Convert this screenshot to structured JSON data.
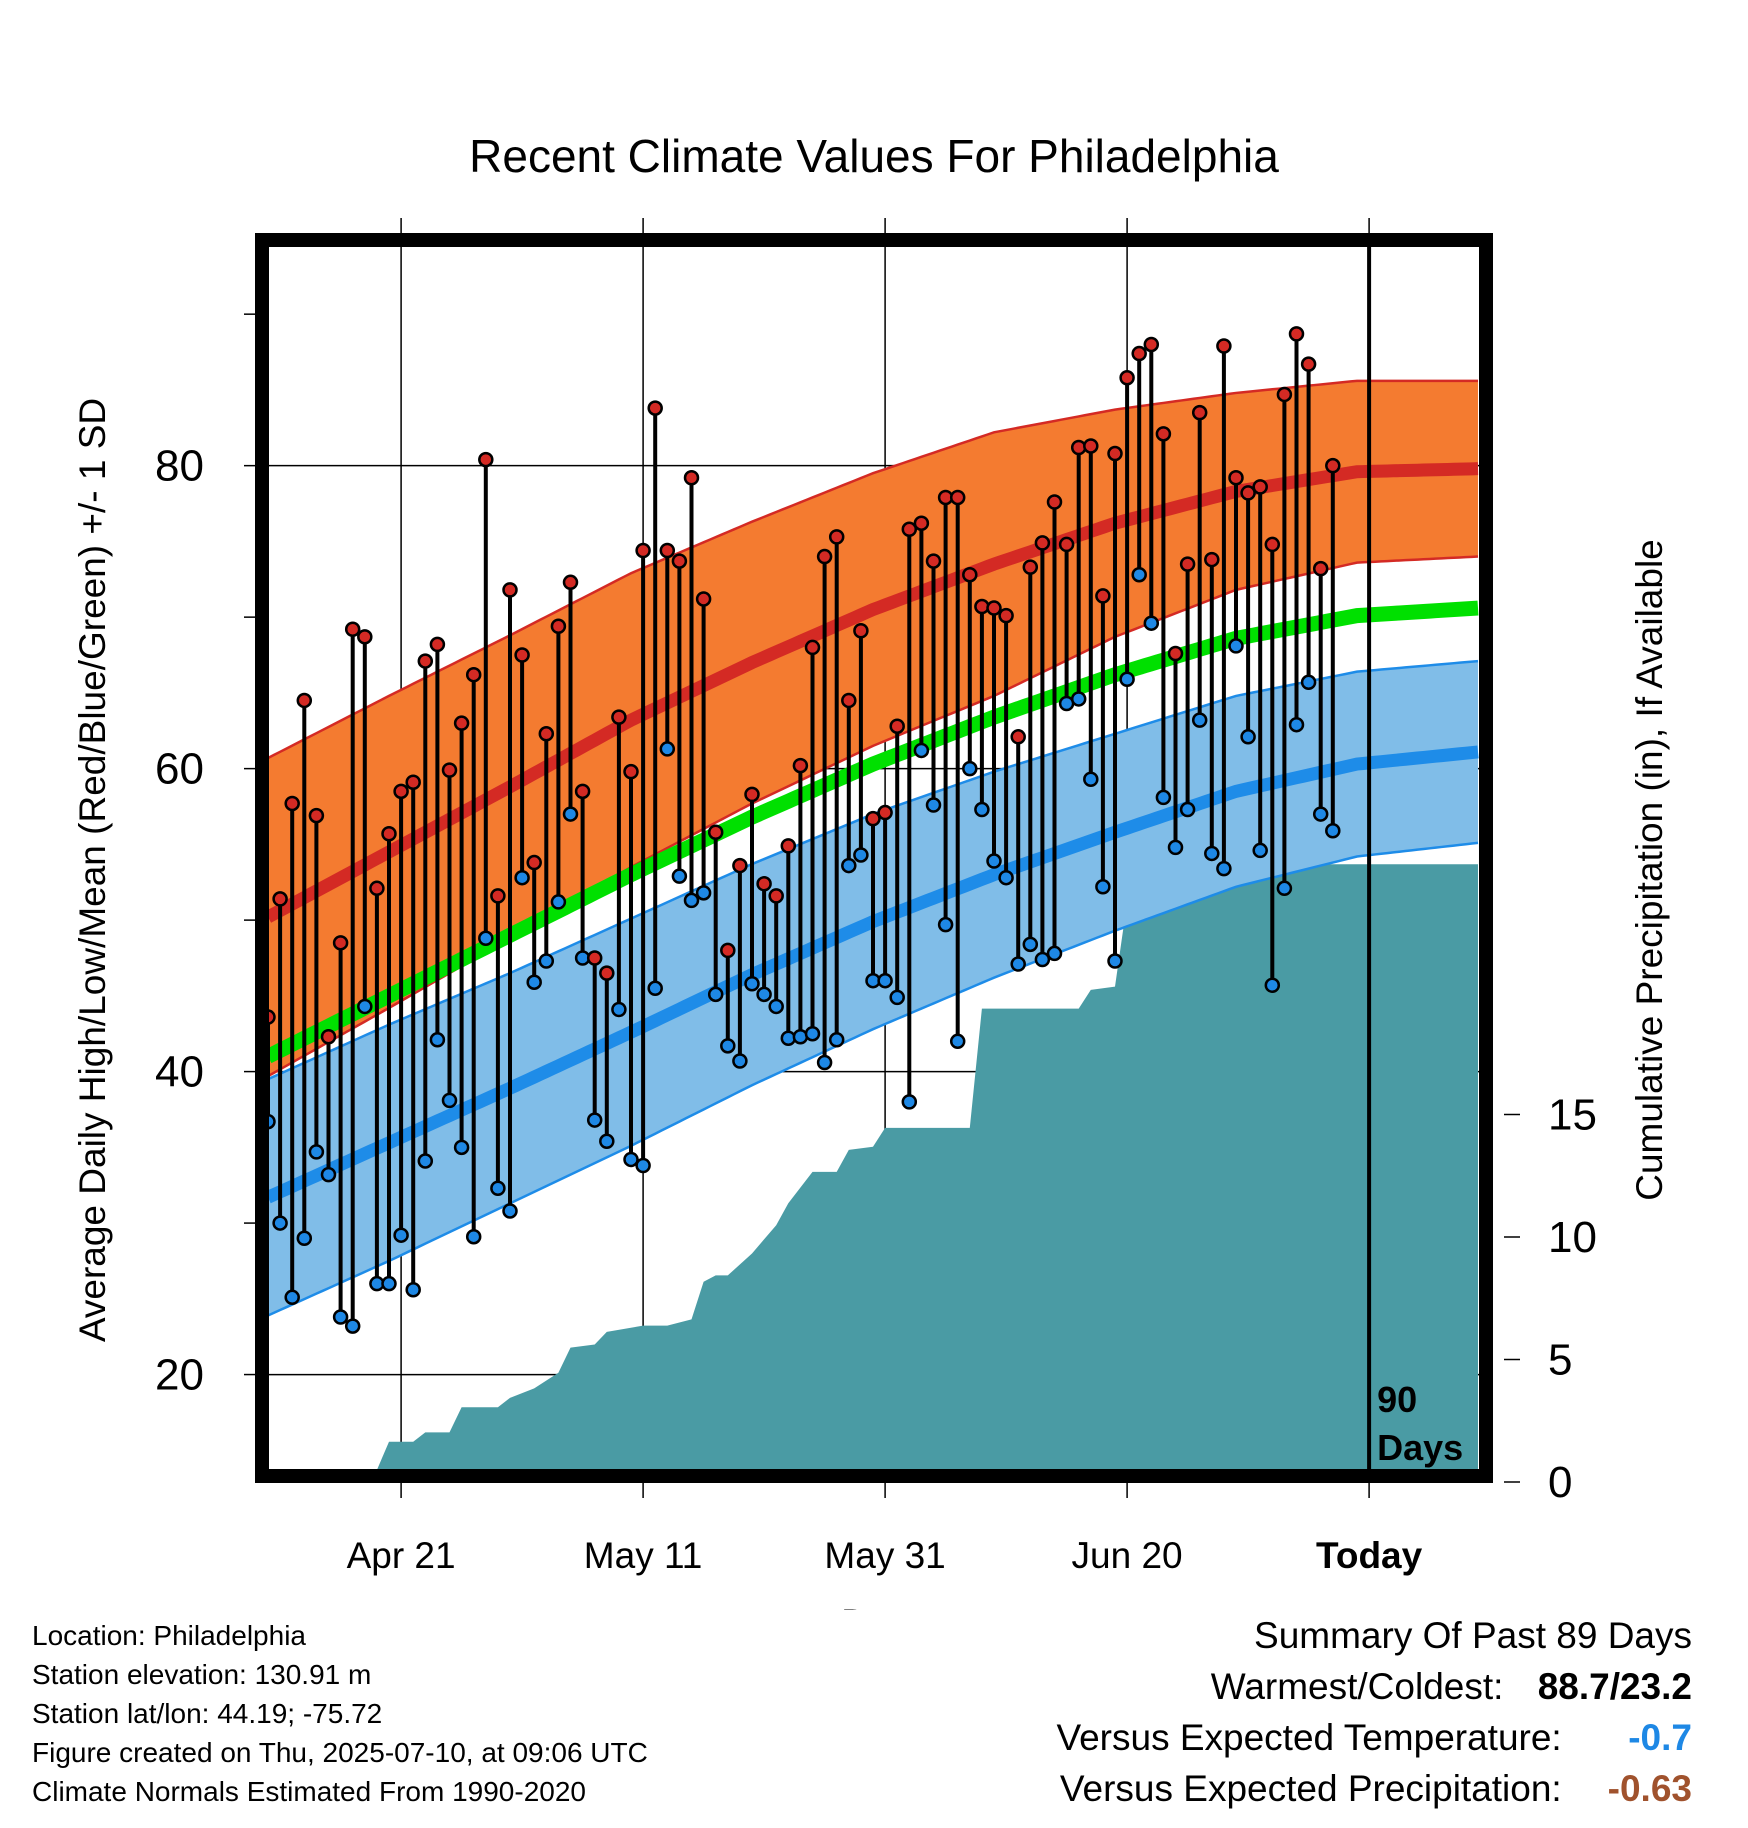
{
  "chart_data": {
    "type": "line",
    "title": "Recent Climate Values For Philadelphia",
    "xlabel": "Day",
    "ylabel": "Average Daily High/Low/Mean (Red/Blue/Green) +/- 1 SD",
    "y2label": "Cumulative Precipitation (in), If Available",
    "ylim": [
      13.7,
      94.5
    ],
    "y_ticks": [
      "20",
      "40",
      "60",
      "80"
    ],
    "y2lim": [
      0,
      19.5
    ],
    "y2_ticks": [
      "0",
      "5",
      "10",
      "15"
    ],
    "x_tick_labels": [
      {
        "day": 11,
        "label": "Apr 21"
      },
      {
        "day": 31,
        "label": "May 11"
      },
      {
        "day": 51,
        "label": "May 31"
      },
      {
        "day": 71,
        "label": "Jun 20"
      },
      {
        "day": 91,
        "label": "Today"
      }
    ],
    "today_marker": {
      "day": 91,
      "label": "90\nDays"
    },
    "grid": true,
    "normals": {
      "days": [
        0,
        10,
        20,
        30,
        40,
        50,
        60,
        70,
        80,
        90,
        100
      ],
      "high_mean": [
        50.2,
        54.5,
        58.8,
        63.2,
        67.0,
        70.5,
        73.5,
        76.2,
        78.3,
        79.6,
        79.8
      ],
      "high_sd": [
        10.5,
        10.3,
        10.0,
        9.7,
        9.3,
        9.0,
        8.7,
        7.5,
        6.5,
        6.0,
        5.8
      ],
      "low_mean": [
        31.7,
        35.3,
        38.9,
        42.6,
        46.4,
        49.9,
        53.0,
        55.8,
        58.5,
        60.3,
        61.1
      ],
      "low_sd": [
        7.8,
        7.8,
        7.6,
        7.5,
        7.3,
        7.1,
        6.8,
        6.5,
        6.3,
        6.1,
        6.0
      ],
      "avg_mean": [
        41.0,
        45.0,
        49.0,
        53.0,
        56.8,
        60.3,
        63.4,
        66.2,
        68.6,
        70.1,
        70.6
      ]
    },
    "series": [
      {
        "day": 0,
        "high": 43.6,
        "low": 36.7
      },
      {
        "day": 1,
        "high": 51.4,
        "low": 30.0
      },
      {
        "day": 2,
        "high": 57.7,
        "low": 25.1
      },
      {
        "day": 3,
        "high": 64.5,
        "low": 29.0
      },
      {
        "day": 4,
        "high": 56.9,
        "low": 34.7
      },
      {
        "day": 5,
        "high": 42.3,
        "low": 33.2
      },
      {
        "day": 6,
        "high": 48.5,
        "low": 23.8
      },
      {
        "day": 7,
        "high": 69.2,
        "low": 23.2
      },
      {
        "day": 8,
        "high": 68.7,
        "low": 44.3
      },
      {
        "day": 9,
        "high": 52.1,
        "low": 26.0
      },
      {
        "day": 10,
        "high": 55.7,
        "low": 26.0
      },
      {
        "day": 11,
        "high": 58.5,
        "low": 29.2
      },
      {
        "day": 12,
        "high": 59.1,
        "low": 25.6
      },
      {
        "day": 13,
        "high": 67.1,
        "low": 34.1
      },
      {
        "day": 14,
        "high": 68.2,
        "low": 42.1
      },
      {
        "day": 15,
        "high": 59.9,
        "low": 38.1
      },
      {
        "day": 16,
        "high": 63.0,
        "low": 35.0
      },
      {
        "day": 17,
        "high": 66.2,
        "low": 29.1
      },
      {
        "day": 18,
        "high": 80.4,
        "low": 48.8
      },
      {
        "day": 19,
        "high": 51.6,
        "low": 32.3
      },
      {
        "day": 20,
        "high": 71.8,
        "low": 30.8
      },
      {
        "day": 21,
        "high": 67.5,
        "low": 52.8
      },
      {
        "day": 22,
        "high": 53.8,
        "low": 45.9
      },
      {
        "day": 23,
        "high": 62.3,
        "low": 47.3
      },
      {
        "day": 24,
        "high": 69.4,
        "low": 51.2
      },
      {
        "day": 25,
        "high": 72.3,
        "low": 57.0
      },
      {
        "day": 26,
        "high": 58.5,
        "low": 47.5
      },
      {
        "day": 27,
        "high": 47.5,
        "low": 36.8
      },
      {
        "day": 28,
        "high": 46.5,
        "low": 35.4
      },
      {
        "day": 29,
        "high": 63.4,
        "low": 44.1
      },
      {
        "day": 30,
        "high": 59.8,
        "low": 34.2
      },
      {
        "day": 31,
        "high": 74.4,
        "low": 33.8
      },
      {
        "day": 32,
        "high": 83.8,
        "low": 45.5
      },
      {
        "day": 33,
        "high": 74.4,
        "low": 61.3
      },
      {
        "day": 34,
        "high": 73.7,
        "low": 52.9
      },
      {
        "day": 35,
        "high": 79.2,
        "low": 51.3
      },
      {
        "day": 36,
        "high": 71.2,
        "low": 51.8
      },
      {
        "day": 37,
        "high": 55.8,
        "low": 45.1
      },
      {
        "day": 38,
        "high": 48.0,
        "low": 41.7
      },
      {
        "day": 39,
        "high": 53.6,
        "low": 40.7
      },
      {
        "day": 40,
        "high": 58.3,
        "low": 45.8
      },
      {
        "day": 41,
        "high": 52.4,
        "low": 45.1
      },
      {
        "day": 42,
        "high": 51.6,
        "low": 44.3
      },
      {
        "day": 43,
        "high": 54.9,
        "low": 42.2
      },
      {
        "day": 44,
        "high": 60.2,
        "low": 42.3
      },
      {
        "day": 45,
        "high": 68.0,
        "low": 42.5
      },
      {
        "day": 46,
        "high": 74.0,
        "low": 40.6
      },
      {
        "day": 47,
        "high": 75.3,
        "low": 42.1
      },
      {
        "day": 48,
        "high": 64.5,
        "low": 53.6
      },
      {
        "day": 49,
        "high": 69.1,
        "low": 54.3
      },
      {
        "day": 50,
        "high": 56.7,
        "low": 46.0
      },
      {
        "day": 51,
        "high": 57.1,
        "low": 46.0
      },
      {
        "day": 52,
        "high": 62.8,
        "low": 44.9
      },
      {
        "day": 53,
        "high": 75.8,
        "low": 38.0
      },
      {
        "day": 54,
        "high": 76.2,
        "low": 61.2
      },
      {
        "day": 55,
        "high": 73.7,
        "low": 57.6
      },
      {
        "day": 56,
        "high": 77.9,
        "low": 49.7
      },
      {
        "day": 57,
        "high": 77.9,
        "low": 42.0
      },
      {
        "day": 58,
        "high": 72.8,
        "low": 60.0
      },
      {
        "day": 59,
        "high": 70.7,
        "low": 57.3
      },
      {
        "day": 60,
        "high": 70.6,
        "low": 53.9
      },
      {
        "day": 61,
        "high": 70.1,
        "low": 52.8
      },
      {
        "day": 62,
        "high": 62.1,
        "low": 47.1
      },
      {
        "day": 63,
        "high": 73.3,
        "low": 48.4
      },
      {
        "day": 64,
        "high": 74.9,
        "low": 47.4
      },
      {
        "day": 65,
        "high": 77.6,
        "low": 47.8
      },
      {
        "day": 66,
        "high": 74.8,
        "low": 64.3
      },
      {
        "day": 67,
        "high": 81.2,
        "low": 64.6
      },
      {
        "day": 68,
        "high": 81.3,
        "low": 59.3
      },
      {
        "day": 69,
        "high": 71.4,
        "low": 52.2
      },
      {
        "day": 70,
        "high": 80.8,
        "low": 47.3
      },
      {
        "day": 71,
        "high": 85.8,
        "low": 65.9
      },
      {
        "day": 72,
        "high": 87.4,
        "low": 72.8
      },
      {
        "day": 73,
        "high": 88.0,
        "low": 69.6
      },
      {
        "day": 74,
        "high": 82.1,
        "low": 58.1
      },
      {
        "day": 75,
        "high": 67.6,
        "low": 54.8
      },
      {
        "day": 76,
        "high": 73.5,
        "low": 57.3
      },
      {
        "day": 77,
        "high": 83.5,
        "low": 63.2
      },
      {
        "day": 78,
        "high": 73.8,
        "low": 54.4
      },
      {
        "day": 79,
        "high": 87.9,
        "low": 53.4
      },
      {
        "day": 80,
        "high": 79.2,
        "low": 68.1
      },
      {
        "day": 81,
        "high": 78.2,
        "low": 62.1
      },
      {
        "day": 82,
        "high": 78.6,
        "low": 54.6
      },
      {
        "day": 83,
        "high": 74.8,
        "low": 45.7
      },
      {
        "day": 84,
        "high": 84.7,
        "low": 52.1
      },
      {
        "day": 85,
        "high": 88.7,
        "low": 62.9
      },
      {
        "day": 86,
        "high": 86.7,
        "low": 65.7
      },
      {
        "day": 87,
        "high": 73.2,
        "low": 57.0
      },
      {
        "day": 88,
        "high": 80.0,
        "low": 55.9
      }
    ],
    "precipitation": {
      "days": [
        0,
        9,
        10,
        12,
        13,
        15,
        16,
        19,
        20,
        22,
        24,
        25,
        27,
        28,
        31,
        33,
        35,
        36,
        37,
        38,
        40,
        42,
        43,
        45,
        47,
        48,
        50,
        51,
        52,
        55,
        56,
        58,
        59,
        63,
        67,
        68,
        70,
        71,
        72,
        75,
        77,
        79,
        80,
        86,
        91,
        100
      ],
      "values": [
        0.0,
        0.0,
        0.45,
        0.45,
        0.6,
        0.6,
        1.0,
        1.0,
        1.15,
        1.3,
        1.55,
        1.95,
        2.0,
        2.2,
        2.3,
        2.3,
        2.4,
        3.0,
        3.1,
        3.1,
        3.45,
        3.9,
        4.25,
        4.75,
        4.75,
        5.1,
        5.15,
        5.45,
        5.45,
        5.45,
        5.45,
        5.45,
        7.35,
        7.35,
        7.35,
        7.65,
        7.7,
        9.05,
        9.05,
        9.05,
        9.15,
        9.25,
        9.65,
        9.65,
        9.65,
        9.65
      ]
    },
    "colors": {
      "high_band": "#f47b30",
      "high_line": "#d42a24",
      "low_band": "#80bde8",
      "low_line": "#1e8ce8",
      "mean_line": "#00e000",
      "precip": "#4a9ba4",
      "high_point": "#d42a24",
      "low_point": "#1e88e5"
    }
  },
  "footer": {
    "location": "Location: Philadelphia",
    "elevation": "Station elevation: 130.91 m",
    "latlon": "Station lat/lon: 44.19; -75.72",
    "created": "Figure created on Thu, 2025-07-10, at 09:06 UTC",
    "normals": "Climate Normals Estimated From 1990-2020"
  },
  "summary": {
    "title": "Summary Of Past 89 Days",
    "warmest_label": "Warmest/Coldest:",
    "warmest_value": "88.7/23.2",
    "temp_label": "Versus Expected Temperature:",
    "temp_value": "-0.7",
    "temp_color": "#1e88e5",
    "precip_label": "Versus Expected Precipitation:",
    "precip_value": "-0.63",
    "precip_color": "#a0522d"
  }
}
